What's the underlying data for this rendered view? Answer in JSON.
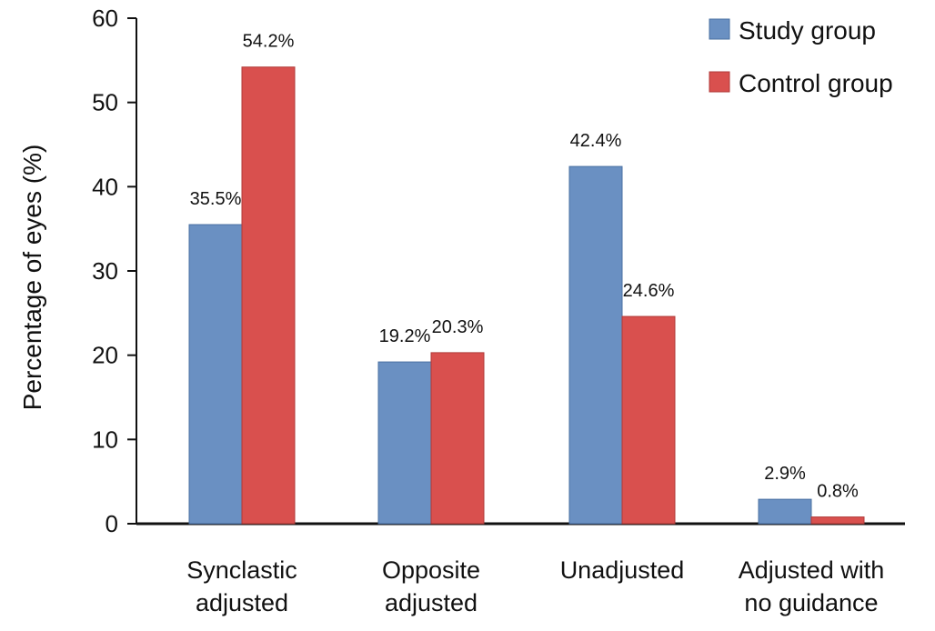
{
  "chart_data": {
    "type": "bar",
    "title": "",
    "xlabel": "",
    "ylabel": "Percentage of eyes (%)",
    "ylim": [
      0,
      60
    ],
    "yticks": [
      0,
      10,
      20,
      30,
      40,
      50,
      60
    ],
    "grid": false,
    "legend_position": "top-right",
    "categories": [
      [
        "Synclastic",
        "adjusted"
      ],
      [
        "Opposite",
        "adjusted"
      ],
      [
        "Unadjusted"
      ],
      [
        "Adjusted with",
        "no guidance"
      ]
    ],
    "series": [
      {
        "name": "Study group",
        "color": "#6a90c2",
        "stroke": "#4a70a2",
        "values": [
          35.5,
          19.2,
          42.4,
          2.9
        ],
        "labels": [
          "35.5%",
          "19.2%",
          "42.4%",
          "2.9%"
        ]
      },
      {
        "name": "Control group",
        "color": "#d9504e",
        "stroke": "#b03a38",
        "values": [
          54.2,
          20.3,
          24.6,
          0.8
        ],
        "labels": [
          "54.2%",
          "20.3%",
          "24.6%",
          "0.8%"
        ]
      }
    ]
  }
}
